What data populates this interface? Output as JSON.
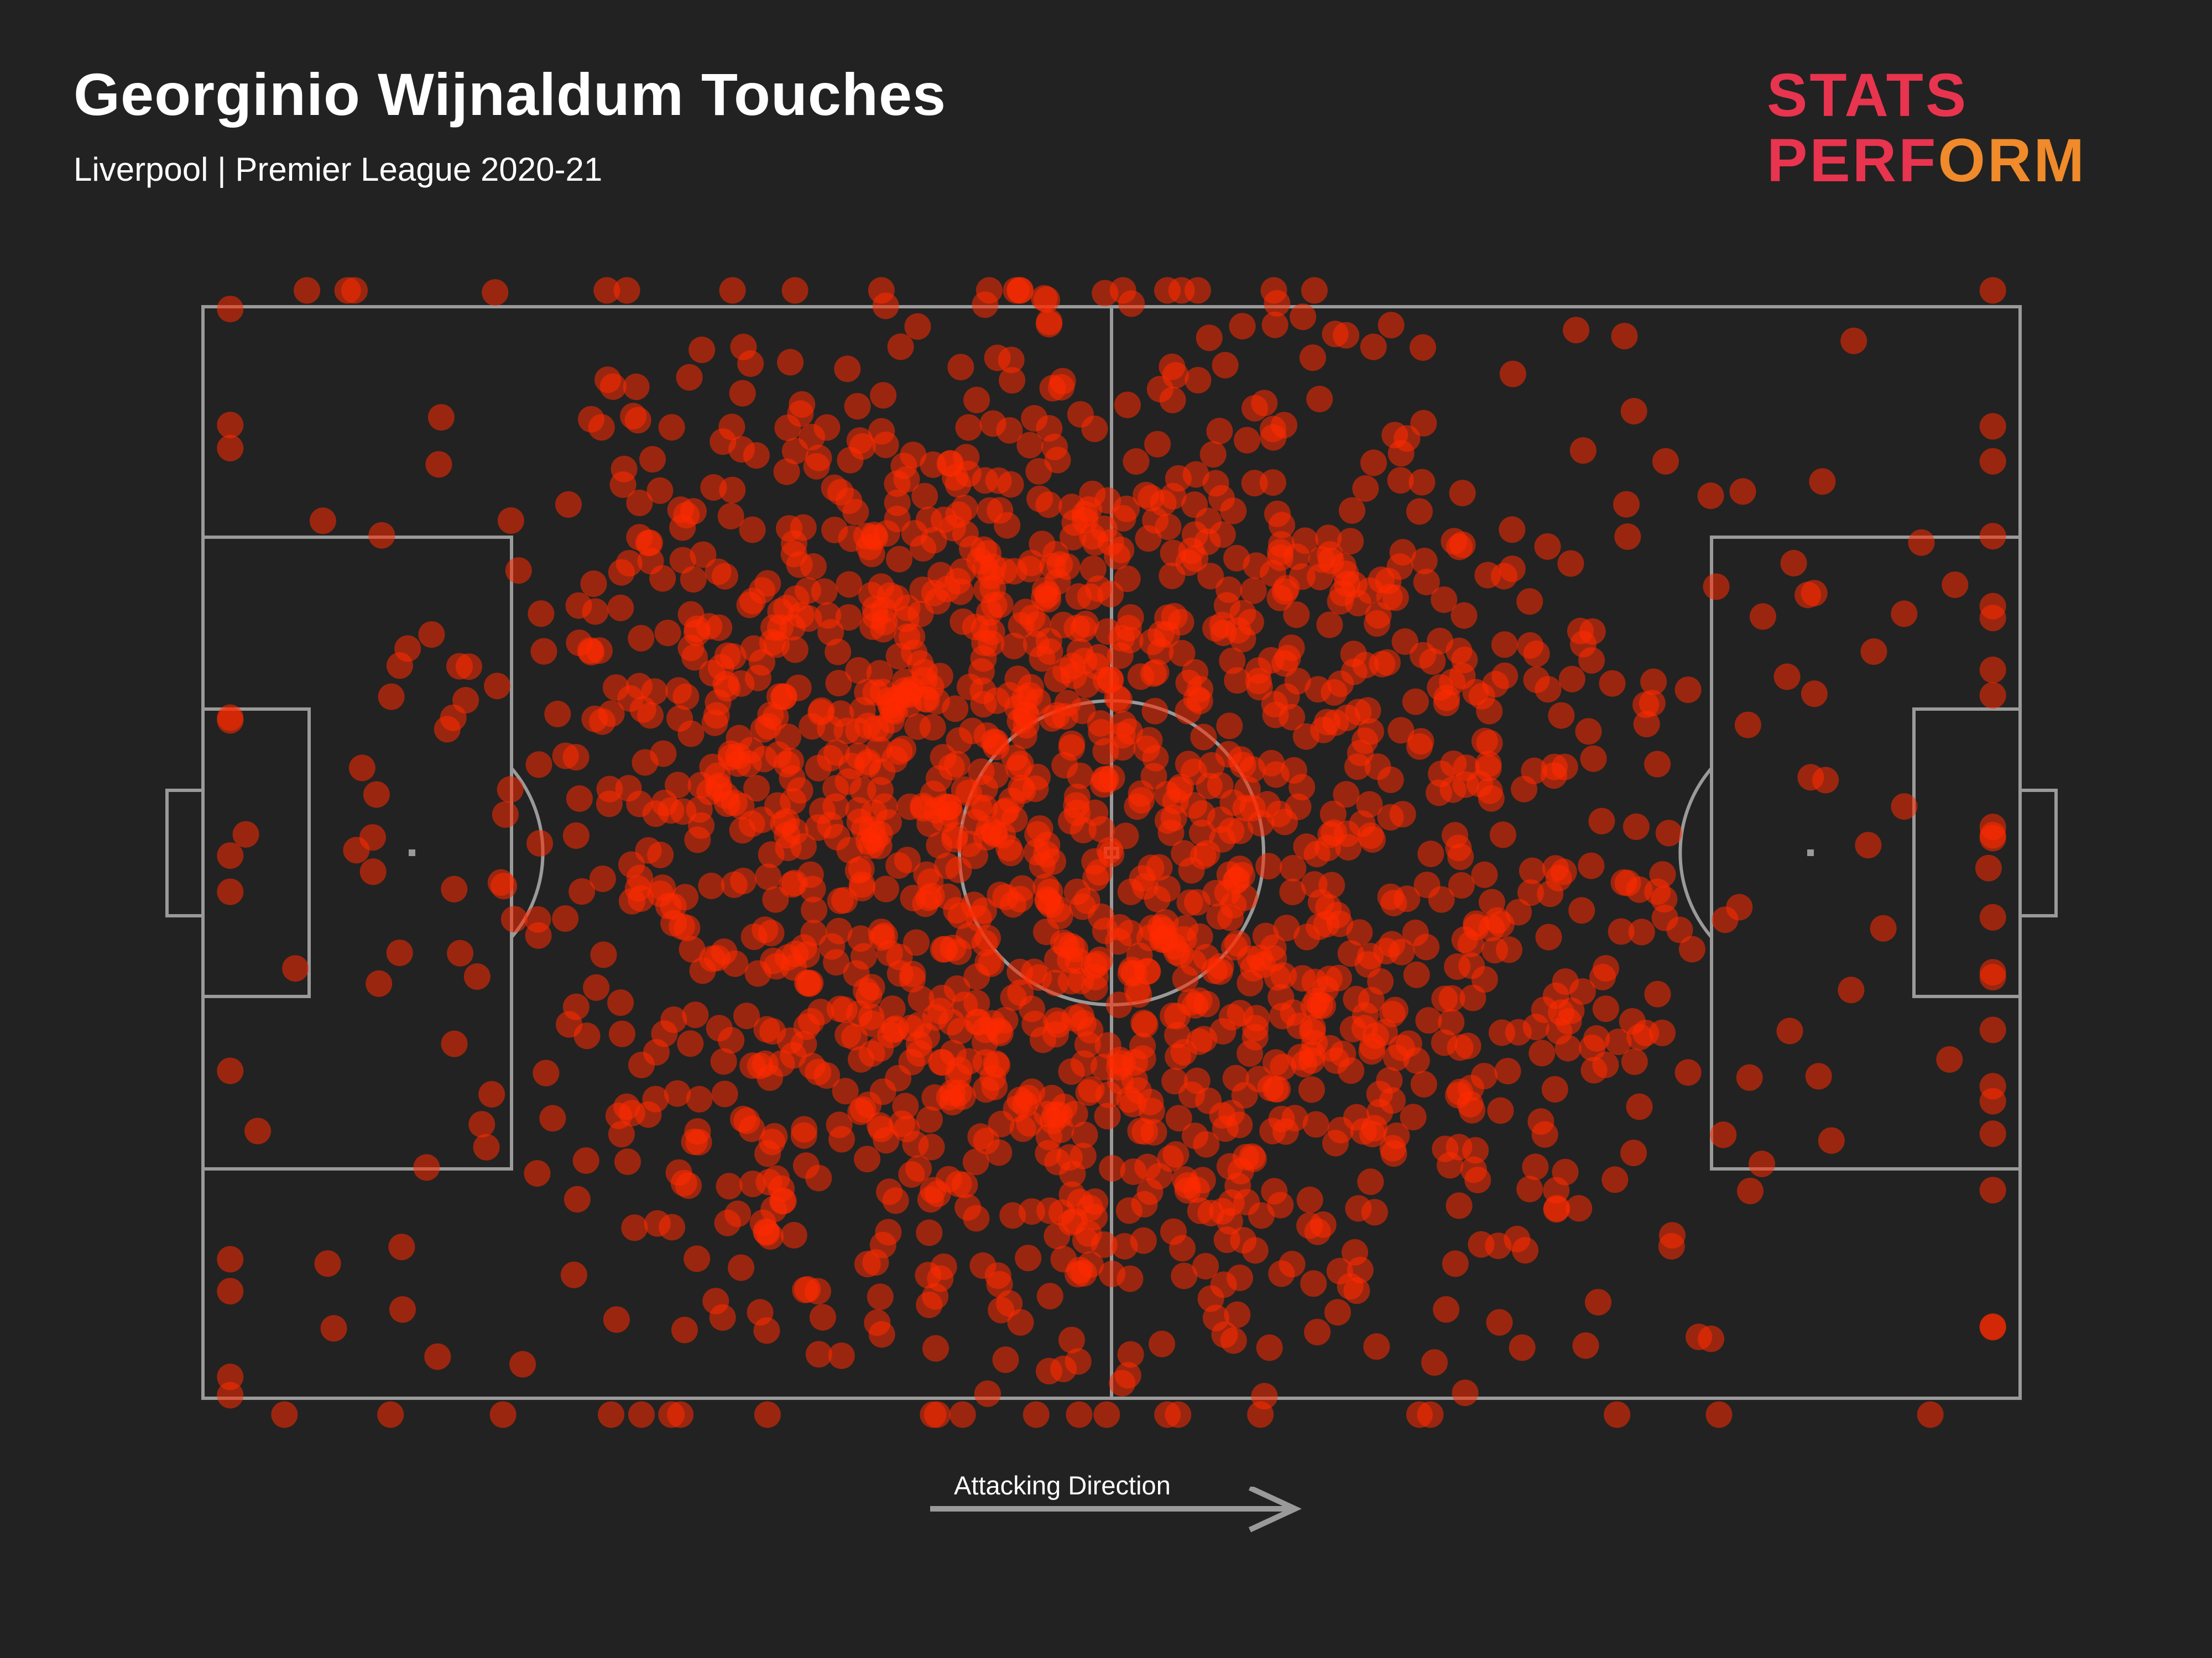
{
  "header": {
    "title": "Georginio Wijnaldum Touches",
    "subtitle": "Liverpool | Premier League 2020-21"
  },
  "logo": {
    "line1": "STATS",
    "line2": "PERFORM",
    "colors": [
      "#e8344e",
      "#f08a2a"
    ]
  },
  "footer": {
    "direction_label": "Attacking Direction"
  },
  "colors": {
    "background": "#222222",
    "pitch_lines": "#9a9a9a",
    "touch_marker": "#ff2a00"
  },
  "chart_data": {
    "type": "scatter",
    "title": "Georginio Wijnaldum Touches",
    "xlabel": "",
    "ylabel": "",
    "xlim": [
      0,
      100
    ],
    "ylim": [
      0,
      100
    ],
    "grid": false,
    "legend": "none",
    "direction": "left-to-right",
    "touch_count": 1850
  }
}
